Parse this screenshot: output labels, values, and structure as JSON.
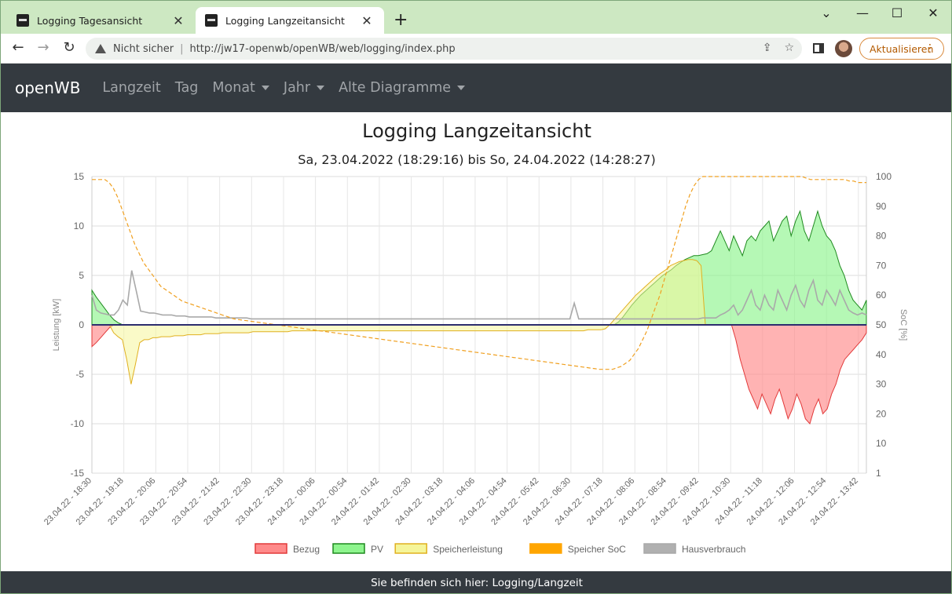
{
  "browser": {
    "tabs": [
      {
        "title": "Logging Tagesansicht"
      },
      {
        "title": "Logging Langzeitansicht"
      }
    ],
    "security_label": "Nicht sicher",
    "url": "http://jw17-openwb/openWB/web/logging/index.php",
    "update_label": "Aktualisieren"
  },
  "nav": {
    "brand": "openWB",
    "items": [
      "Langzeit",
      "Tag",
      "Monat",
      "Jahr",
      "Alte Diagramme"
    ]
  },
  "page": {
    "title": "Logging Langzeitansicht",
    "subtitle": "Sa, 23.04.2022 (18:29:16) bis So, 24.04.2022 (14:28:27)"
  },
  "footer": {
    "text": "Sie befinden sich hier: Logging/Langzeit"
  },
  "chart_data": {
    "type": "area",
    "ylabel_left": "Leistung [kW]",
    "ylabel_right": "SoC [%]",
    "ylim_left": [
      -15,
      15
    ],
    "yticks_left": [
      "15",
      "10",
      "5",
      "0",
      "-5",
      "-10",
      "-15"
    ],
    "ylim_right": [
      0,
      100
    ],
    "yticks_right": [
      "100",
      "90",
      "80",
      "70",
      "60",
      "50",
      "40",
      "30",
      "20",
      "10",
      "1"
    ],
    "x_ticks": [
      "23.04.22 - 18:30",
      "23.04.22 - 19:18",
      "23.04.22 - 20:06",
      "23.04.22 - 20:54",
      "23.04.22 - 21:42",
      "23.04.22 - 22:30",
      "23.04.22 - 23:18",
      "24.04.22 - 00:06",
      "24.04.22 - 00:54",
      "24.04.22 - 01:42",
      "24.04.22 - 02:30",
      "24.04.22 - 03:18",
      "24.04.22 - 04:06",
      "24.04.22 - 04:54",
      "24.04.22 - 05:42",
      "24.04.22 - 06:30",
      "24.04.22 - 07:18",
      "24.04.22 - 08:06",
      "24.04.22 - 08:54",
      "24.04.22 - 09:42",
      "24.04.22 - 10:30",
      "24.04.22 - 11:18",
      "24.04.22 - 12:06",
      "24.04.22 - 12:54",
      "24.04.22 - 13:42"
    ],
    "legend_position": "bottom",
    "grid": true,
    "series": [
      {
        "name": "Bezug",
        "color": "#ff8a8a",
        "values": [
          -2.2,
          -1.8,
          -1.3,
          -0.8,
          -0.3,
          0,
          0,
          0,
          0,
          0,
          0,
          0,
          0,
          0,
          0,
          0,
          0,
          0,
          0,
          0,
          0,
          0,
          0,
          0,
          0,
          0,
          0,
          0,
          0,
          0,
          0,
          0,
          0,
          0,
          0,
          0,
          0,
          0,
          0,
          0,
          0,
          0,
          0,
          0,
          0,
          0,
          0,
          0,
          0,
          0,
          0,
          0,
          0,
          0,
          0,
          0,
          0,
          0,
          0,
          0,
          0,
          0,
          0,
          0,
          0,
          0,
          0,
          0,
          0,
          0,
          0,
          0,
          0,
          0,
          0,
          0,
          0,
          0,
          0,
          0,
          0,
          0,
          0,
          0,
          0,
          0,
          0,
          0,
          0,
          0,
          0,
          0,
          0,
          0,
          0,
          0,
          0,
          0,
          0,
          0,
          0,
          0,
          0,
          0,
          0,
          0,
          0,
          0,
          0,
          0,
          0,
          0,
          0,
          0,
          0,
          0,
          0,
          0,
          0,
          0,
          0,
          0,
          0,
          0,
          0,
          0,
          0,
          0,
          0,
          0,
          0,
          0,
          0,
          0,
          0,
          0,
          0,
          0,
          0,
          0,
          0,
          0,
          0,
          0,
          0,
          0,
          0,
          0,
          -1.5,
          -3.5,
          -5.0,
          -6.5,
          -7.5,
          -8.5,
          -7.0,
          -8.0,
          -9.0,
          -7.5,
          -6.5,
          -8.0,
          -9.5,
          -8.5,
          -7.0,
          -8.0,
          -9.5,
          -10.0,
          -8.5,
          -7.5,
          -9.0,
          -8.5,
          -7.0,
          -6.0,
          -4.5,
          -3.5,
          -3.0,
          -2.5,
          -2.0,
          -1.5,
          -0.8
        ]
      },
      {
        "name": "PV",
        "color": "#8ef58e",
        "values": [
          3.5,
          2.8,
          2.2,
          1.6,
          1.0,
          0.5,
          0.2,
          0,
          0,
          0,
          0,
          0,
          0,
          0,
          0,
          0,
          0,
          0,
          0,
          0,
          0,
          0,
          0,
          0,
          0,
          0,
          0,
          0,
          0,
          0,
          0,
          0,
          0,
          0,
          0,
          0,
          0,
          0,
          0,
          0,
          0,
          0,
          0,
          0,
          0,
          0,
          0,
          0,
          0,
          0,
          0,
          0,
          0,
          0,
          0,
          0,
          0,
          0,
          0,
          0,
          0,
          0,
          0,
          0,
          0,
          0,
          0,
          0,
          0,
          0,
          0,
          0,
          0,
          0,
          0,
          0,
          0,
          0,
          0,
          0,
          0,
          0,
          0,
          0,
          0,
          0,
          0,
          0,
          0,
          0,
          0,
          0,
          0,
          0,
          0,
          0,
          0,
          0,
          0,
          0,
          0,
          0,
          0,
          0,
          0,
          0,
          0,
          0,
          0,
          0,
          0,
          0,
          0,
          0,
          0,
          0,
          0,
          0,
          0,
          0.3,
          0.8,
          1.4,
          2.0,
          2.5,
          3.0,
          3.4,
          3.8,
          4.2,
          4.6,
          5.0,
          5.3,
          5.6,
          6.0,
          6.3,
          6.6,
          6.8,
          7.0,
          7.0,
          7.1,
          7.2,
          7.5,
          8.5,
          9.5,
          8.5,
          7.5,
          9.0,
          8.0,
          7.0,
          8.5,
          9.0,
          8.5,
          9.5,
          10.0,
          10.5,
          8.5,
          9.5,
          10.5,
          11.0,
          9.0,
          10.5,
          11.5,
          9.5,
          8.5,
          10.0,
          11.5,
          10.0,
          9.0,
          8.5,
          7.5,
          6.0,
          5.0,
          3.5,
          2.5,
          2.0,
          1.5,
          2.5
        ]
      },
      {
        "name": "Speicherleistung",
        "color": "#f5f59a",
        "values": [
          0,
          0,
          0,
          0,
          0,
          -0.8,
          -1.2,
          -1.5,
          -3.5,
          -6.0,
          -4.0,
          -1.8,
          -1.5,
          -1.5,
          -1.3,
          -1.3,
          -1.2,
          -1.2,
          -1.2,
          -1.1,
          -1.1,
          -1.1,
          -1.0,
          -1.0,
          -1.0,
          -1.0,
          -0.9,
          -0.9,
          -0.9,
          -0.9,
          -0.8,
          -0.8,
          -0.8,
          -0.8,
          -0.8,
          -0.8,
          -0.8,
          -0.7,
          -0.7,
          -0.7,
          -0.7,
          -0.7,
          -0.7,
          -0.7,
          -0.7,
          -0.7,
          -0.6,
          -0.6,
          -0.6,
          -0.6,
          -0.6,
          -0.6,
          -0.6,
          -0.6,
          -0.6,
          -0.6,
          -0.6,
          -0.6,
          -0.6,
          -0.6,
          -0.6,
          -0.6,
          -0.6,
          -0.6,
          -0.6,
          -0.6,
          -0.6,
          -0.6,
          -0.6,
          -0.6,
          -0.6,
          -0.6,
          -0.6,
          -0.6,
          -0.6,
          -0.6,
          -0.6,
          -0.6,
          -0.6,
          -0.6,
          -0.6,
          -0.6,
          -0.6,
          -0.6,
          -0.6,
          -0.6,
          -0.6,
          -0.6,
          -0.6,
          -0.6,
          -0.6,
          -0.6,
          -0.6,
          -0.6,
          -0.6,
          -0.6,
          -0.6,
          -0.6,
          -0.6,
          -0.6,
          -0.6,
          -0.6,
          -0.6,
          -0.6,
          -0.6,
          -0.6,
          -0.6,
          -0.6,
          -0.6,
          -0.6,
          -0.6,
          -0.6,
          -0.6,
          -0.6,
          -0.5,
          -0.5,
          -0.5,
          -0.5,
          -0.4,
          0,
          0.5,
          1.0,
          1.5,
          2.0,
          2.5,
          3.0,
          3.4,
          3.8,
          4.2,
          4.6,
          5.0,
          5.3,
          5.6,
          6.0,
          6.2,
          6.4,
          6.5,
          6.6,
          6.6,
          6.5,
          6.0,
          0,
          0,
          0,
          0,
          0,
          0,
          0,
          0,
          0,
          0,
          0,
          0,
          0,
          0,
          0,
          0,
          0,
          0,
          0,
          0,
          0,
          0,
          0,
          0,
          0,
          0,
          0,
          0,
          0,
          0,
          0,
          0,
          0,
          0,
          0,
          0,
          0,
          0
        ]
      },
      {
        "name": "Speicher SoC",
        "color": "#ffa500",
        "values": [
          99,
          99,
          99,
          99,
          98,
          96,
          93,
          89,
          85,
          81,
          77,
          74,
          71,
          69,
          67,
          65,
          63,
          62,
          61,
          60,
          59,
          58,
          57.5,
          57,
          56.5,
          56,
          55.5,
          55,
          54.5,
          54,
          53.5,
          53,
          52.5,
          52,
          51.8,
          51.6,
          51.4,
          51.2,
          51,
          50.8,
          50.6,
          50.4,
          50.2,
          50,
          49.8,
          49.6,
          49.4,
          49.2,
          49,
          48.8,
          48.6,
          48.4,
          48.2,
          48,
          47.8,
          47.6,
          47.4,
          47.2,
          47,
          46.8,
          46.6,
          46.4,
          46.2,
          46,
          45.8,
          45.6,
          45.4,
          45.2,
          45,
          44.8,
          44.6,
          44.4,
          44.2,
          44,
          43.8,
          43.6,
          43.4,
          43.2,
          43,
          42.8,
          42.6,
          42.4,
          42.2,
          42,
          41.8,
          41.6,
          41.4,
          41.2,
          41,
          40.8,
          40.6,
          40.4,
          40.2,
          40,
          39.8,
          39.6,
          39.4,
          39.2,
          39,
          38.8,
          38.6,
          38.4,
          38.2,
          38,
          37.8,
          37.6,
          37.4,
          37.2,
          37,
          36.8,
          36.6,
          36.4,
          36.2,
          36,
          35.8,
          35.6,
          35.4,
          35.2,
          35,
          35,
          35,
          35,
          35.5,
          36,
          37,
          38,
          40,
          42,
          45,
          48,
          52,
          56,
          60,
          65,
          70,
          75,
          80,
          85,
          90,
          94,
          97,
          99,
          100,
          100,
          100,
          100,
          100,
          100,
          100,
          100,
          100,
          100,
          100,
          100,
          100,
          100,
          100,
          100,
          100,
          100,
          100,
          100,
          100,
          100,
          100,
          100,
          99.5,
          99,
          99,
          99,
          99,
          99,
          99,
          99,
          99,
          99,
          98.5,
          98.5,
          98,
          98,
          98
        ]
      },
      {
        "name": "Hausverbrauch",
        "color": "#b0b0b0",
        "values": [
          3.0,
          1.5,
          1.2,
          1.1,
          1.0,
          1.0,
          1.5,
          2.5,
          2.0,
          5.5,
          3.5,
          1.4,
          1.3,
          1.2,
          1.2,
          1.1,
          1.0,
          1.0,
          1.0,
          0.9,
          0.9,
          0.9,
          0.8,
          0.8,
          0.8,
          0.8,
          0.8,
          0.8,
          0.7,
          0.7,
          0.7,
          0.7,
          0.7,
          0.7,
          0.7,
          0.7,
          0.6,
          0.6,
          0.6,
          0.6,
          0.6,
          0.6,
          0.6,
          0.6,
          0.6,
          0.6,
          0.6,
          0.6,
          0.6,
          0.6,
          0.6,
          0.6,
          0.6,
          0.6,
          0.6,
          0.6,
          0.6,
          0.6,
          0.6,
          0.6,
          0.6,
          0.6,
          0.6,
          0.6,
          0.6,
          0.6,
          0.6,
          0.6,
          0.6,
          0.6,
          0.6,
          0.6,
          0.6,
          0.6,
          0.6,
          0.6,
          0.6,
          0.6,
          0.6,
          0.6,
          0.6,
          0.6,
          0.6,
          0.6,
          0.6,
          0.6,
          0.6,
          0.6,
          0.6,
          0.6,
          0.6,
          0.6,
          0.6,
          0.6,
          0.6,
          0.6,
          0.6,
          0.6,
          0.6,
          0.6,
          0.6,
          0.6,
          0.6,
          0.6,
          0.6,
          0.6,
          0.6,
          0.6,
          0.6,
          2.2,
          0.6,
          0.6,
          0.6,
          0.6,
          0.6,
          0.6,
          0.6,
          0.6,
          0.6,
          0.6,
          0.6,
          0.6,
          0.6,
          0.6,
          0.6,
          0.6,
          0.6,
          0.6,
          0.6,
          0.6,
          0.6,
          0.6,
          0.6,
          0.6,
          0.6,
          0.6,
          0.6,
          0.6,
          0.7,
          0.7,
          0.7,
          0.7,
          1.0,
          1.2,
          1.5,
          2.0,
          1.0,
          1.5,
          2.5,
          3.5,
          2.0,
          1.5,
          3.0,
          2.0,
          1.5,
          3.5,
          2.5,
          1.5,
          3.0,
          4.0,
          2.5,
          1.8,
          3.5,
          4.5,
          2.5,
          2.0,
          3.5,
          2.8,
          2.0,
          3.5,
          2.5,
          1.5,
          1.2,
          1.0,
          1.2,
          1.0
        ]
      }
    ]
  }
}
